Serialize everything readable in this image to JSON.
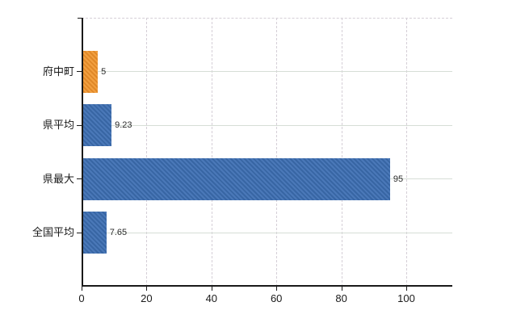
{
  "chart_data": {
    "type": "bar",
    "orientation": "horizontal",
    "title": "",
    "xlabel": "",
    "ylabel": "",
    "categories": [
      "府中町",
      "県平均",
      "県最大",
      "全国平均"
    ],
    "values": [
      5,
      9.23,
      95,
      7.65
    ],
    "value_labels": [
      "5",
      "9.23",
      "95",
      "7.65"
    ],
    "series_colors": [
      "orange",
      "blue",
      "blue",
      "blue"
    ],
    "x_ticks": [
      0,
      20,
      40,
      60,
      80,
      100
    ],
    "x_tick_labels": [
      "0",
      "20",
      "40",
      "60",
      "80",
      "100"
    ],
    "xlim": [
      0,
      114
    ],
    "grid": "on",
    "legend": "none"
  },
  "colors": {
    "bar_orange": "#ec9434",
    "bar_blue": "#4070b0",
    "horizontal_gridline": "#d6ded6",
    "vertical_gridline": "#d5cfd7",
    "axis_line": "#1a1a1a",
    "value_label_text": "#2b2b2b",
    "tick_label_text": "#1a1a1a"
  }
}
